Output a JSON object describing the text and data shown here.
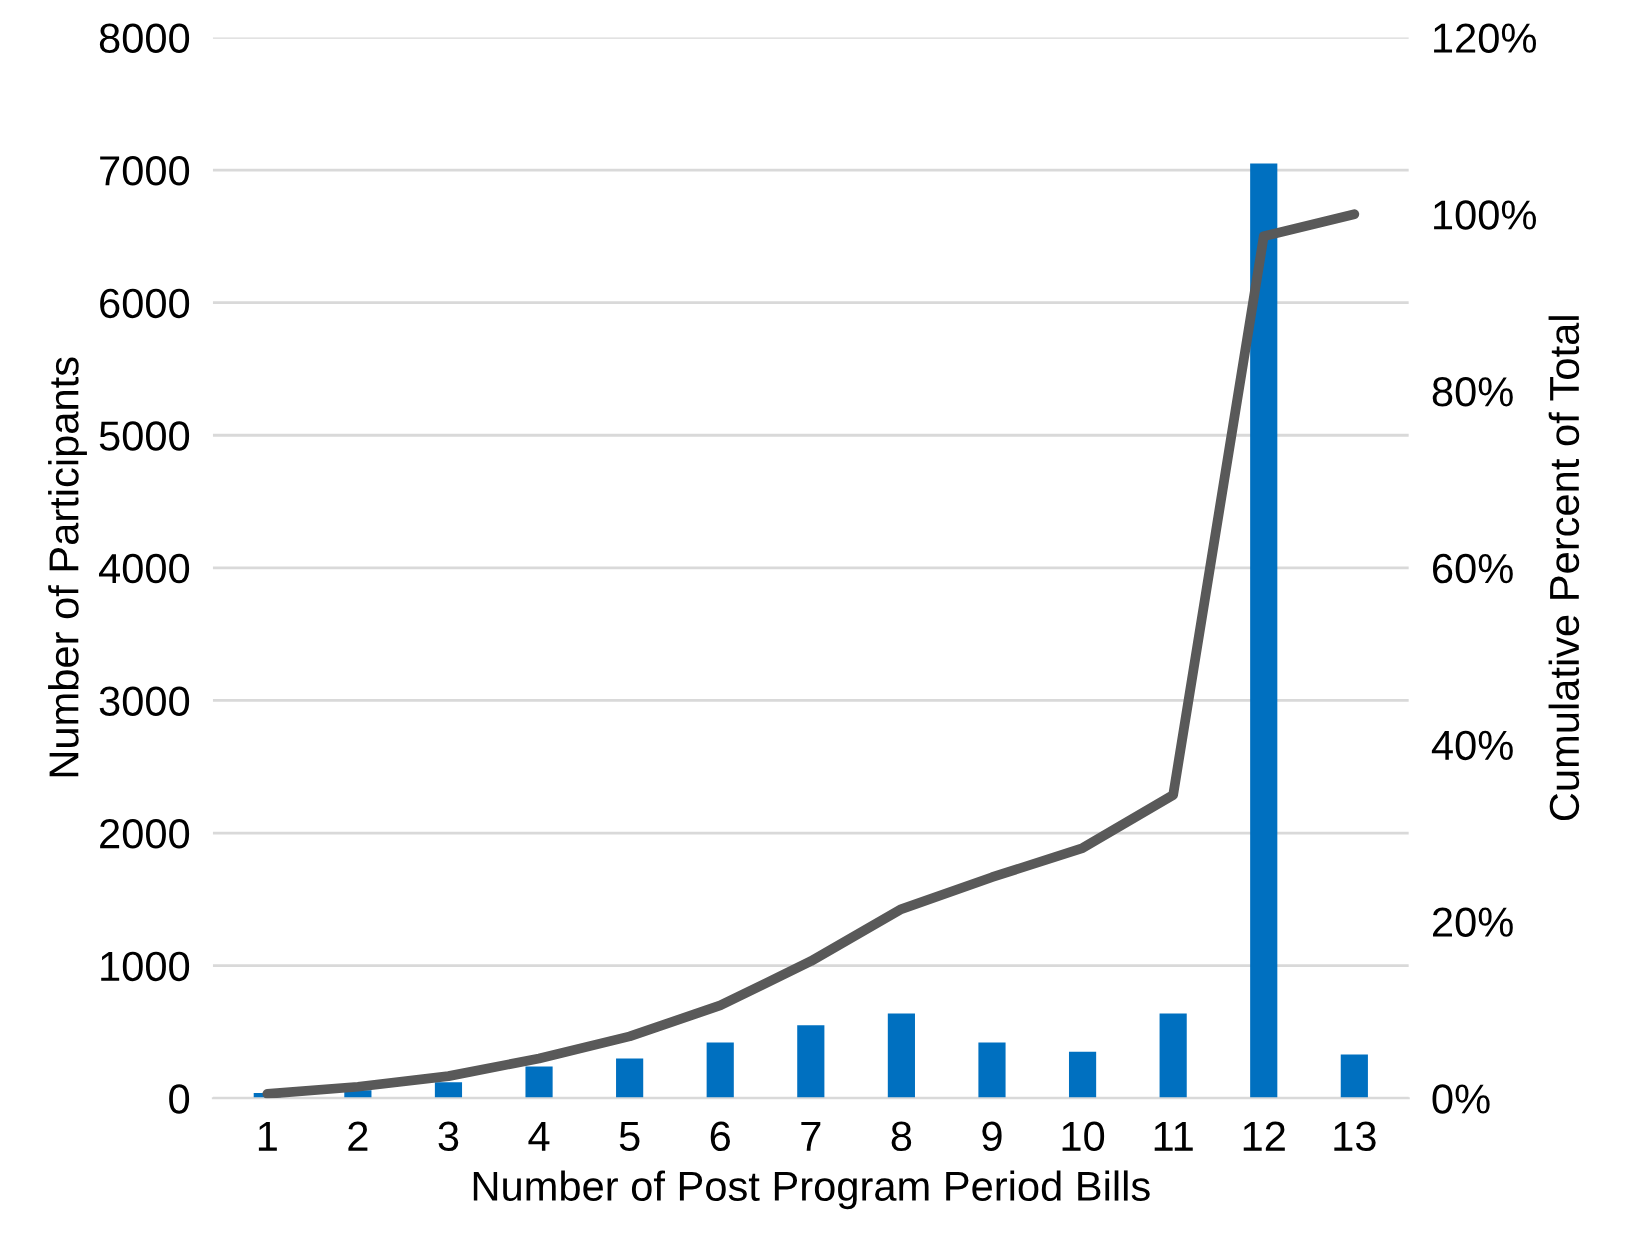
{
  "chart_data": {
    "type": "bar",
    "xlabel": "Number of Post Program Period Bills",
    "ylabel": "Number of Participants",
    "y2label": "Cumulative Percent of Total",
    "categories": [
      "1",
      "2",
      "3",
      "4",
      "5",
      "6",
      "7",
      "8",
      "9",
      "10",
      "11",
      "12",
      "13"
    ],
    "series": [
      {
        "color": "#0070c0",
        "values": [
          40,
          60,
          120,
          240,
          300,
          420,
          550,
          640,
          420,
          350,
          640,
          7050,
          330
        ]
      },
      {
        "type": "line",
        "axis": "y2",
        "color": "#595959",
        "values": [
          0.5,
          1.3,
          2.5,
          4.5,
          7,
          10.5,
          15.5,
          21.4,
          25,
          28.3,
          34.3,
          97.5,
          100
        ]
      }
    ],
    "ylim": [
      0,
      8000
    ],
    "yticks": [
      0,
      1000,
      2000,
      3000,
      4000,
      5000,
      6000,
      7000,
      8000
    ],
    "y2lim": [
      0,
      120
    ],
    "y2ticks": [
      {
        "value": 0,
        "label": "0%"
      },
      {
        "value": 20,
        "label": "20%"
      },
      {
        "value": 40,
        "label": "40%"
      },
      {
        "value": 60,
        "label": "60%"
      },
      {
        "value": 80,
        "label": "80%"
      },
      {
        "value": 100,
        "label": "100%"
      },
      {
        "value": 120,
        "label": "120%"
      }
    ],
    "grid": "y",
    "legend": false,
    "marker": "none"
  }
}
